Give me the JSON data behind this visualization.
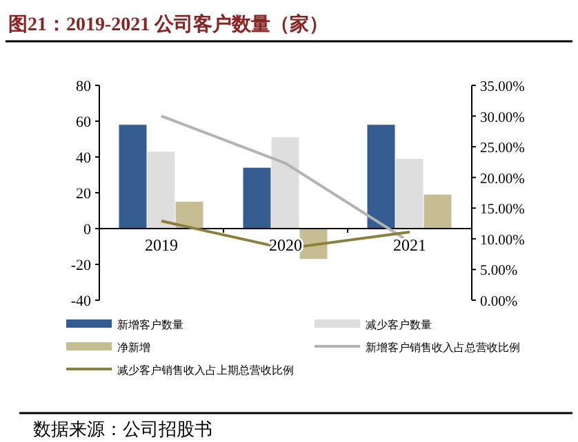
{
  "chart_data": {
    "type": "bar",
    "title": "图21：2019-2021 公司客户数量（家）",
    "annotations": [
      "数据来源：公司招股书"
    ],
    "categories": [
      "2019",
      "2020",
      "2021"
    ],
    "series": [
      {
        "name": "新增客户数量",
        "color": "#365d91",
        "values": [
          58,
          34,
          58
        ]
      },
      {
        "name": "减少客户数量",
        "color": "#dedede",
        "values": [
          43,
          51,
          39
        ]
      },
      {
        "name": "净新增",
        "color": "#c6bd93",
        "values": [
          15,
          -17,
          19
        ]
      },
      {
        "name": "新增客户销售收入占总营收比例",
        "type": "line",
        "axis": "y2",
        "color": "#b3b3b3",
        "values": [
          30,
          22.3,
          9.5
        ]
      },
      {
        "name": "减少客户销售收入占上期总营收比例",
        "type": "line",
        "axis": "y2",
        "color": "#8c7f3e",
        "values": [
          12.9,
          8.4,
          11.1
        ]
      }
    ],
    "ylim": [
      -40,
      80
    ],
    "yticks": [
      -40,
      -20,
      0,
      20,
      40,
      60,
      80
    ],
    "y2lim": [
      0,
      35
    ],
    "y2ticks": [
      {
        "value": 0,
        "label": "0.00%"
      },
      {
        "value": 5,
        "label": "5.00%"
      },
      {
        "value": 10,
        "label": "10.00%"
      },
      {
        "value": 15,
        "label": "15.00%"
      },
      {
        "value": 20,
        "label": "20.00%"
      },
      {
        "value": 25,
        "label": "25.00%"
      },
      {
        "value": 30,
        "label": "30.00%"
      },
      {
        "value": 35,
        "label": "35.00%"
      }
    ],
    "legend": "bottom",
    "grid": false
  }
}
